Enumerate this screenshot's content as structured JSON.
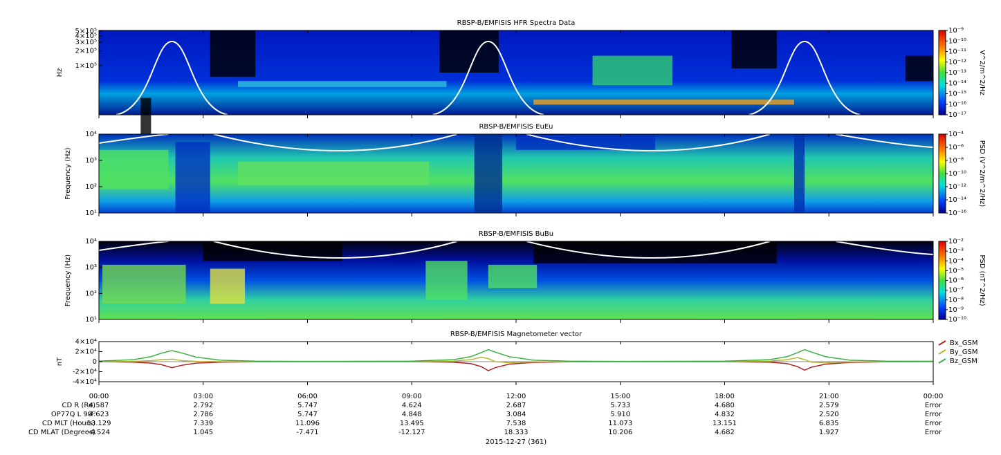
{
  "chart_data": [
    {
      "type": "spectrogram",
      "title": "RBSP-B/EMFISIS  HFR Spectra Data",
      "ylabel": "Hz",
      "yscale": "log",
      "ylim": [
        10000,
        520000
      ],
      "yticks": [
        {
          "value": 100000,
          "label": "1×10⁵"
        },
        {
          "value": 200000,
          "label": "2×10⁵"
        },
        {
          "value": 300000,
          "label": "3×10⁵"
        },
        {
          "value": 400000,
          "label": "4×10⁵"
        },
        {
          "value": 500000,
          "label": "5×10⁵"
        }
      ],
      "colorbar": {
        "label": "V^2/m^2/Hz",
        "scale": "log",
        "lim": [
          1e-17,
          1e-09
        ],
        "ticks": [
          {
            "value": 1e-09,
            "label": "10⁻⁹"
          },
          {
            "value": 1e-10,
            "label": "10⁻¹⁰"
          },
          {
            "value": 1e-11,
            "label": "10⁻¹¹"
          },
          {
            "value": 1e-12,
            "label": "10⁻¹²"
          },
          {
            "value": 1e-13,
            "label": "10⁻¹³"
          },
          {
            "value": 1e-14,
            "label": "10⁻¹⁴"
          },
          {
            "value": 1e-15,
            "label": "10⁻¹⁵"
          },
          {
            "value": 1e-16,
            "label": "10⁻¹⁶"
          },
          {
            "value": 1e-17,
            "label": "10⁻¹⁷"
          }
        ]
      }
    },
    {
      "type": "spectrogram",
      "title": "RBSP-B/EMFISIS  EuEu",
      "ylabel": "Frequency (Hz)",
      "yscale": "log",
      "ylim": [
        10,
        10000
      ],
      "yticks": [
        {
          "value": 10,
          "label": "10¹"
        },
        {
          "value": 100,
          "label": "10²"
        },
        {
          "value": 1000,
          "label": "10³"
        },
        {
          "value": 10000,
          "label": "10⁴"
        }
      ],
      "colorbar": {
        "label": "PSD (V^2/m^2/Hz)",
        "scale": "log",
        "lim": [
          1e-16,
          0.0001
        ],
        "ticks": [
          {
            "value": 0.0001,
            "label": "10⁻⁴"
          },
          {
            "value": 1e-06,
            "label": "10⁻⁶"
          },
          {
            "value": 1e-08,
            "label": "10⁻⁸"
          },
          {
            "value": 1e-10,
            "label": "10⁻¹⁰"
          },
          {
            "value": 1e-12,
            "label": "10⁻¹²"
          },
          {
            "value": 1e-14,
            "label": "10⁻¹⁴"
          },
          {
            "value": 1e-16,
            "label": "10⁻¹⁶"
          }
        ]
      }
    },
    {
      "type": "spectrogram",
      "title": "RBSP-B/EMFISIS  BuBu",
      "ylabel": "Frequency (Hz)",
      "yscale": "log",
      "ylim": [
        10,
        10000
      ],
      "yticks": [
        {
          "value": 10,
          "label": "10¹"
        },
        {
          "value": 100,
          "label": "10²"
        },
        {
          "value": 1000,
          "label": "10³"
        },
        {
          "value": 10000,
          "label": "10⁴"
        }
      ],
      "colorbar": {
        "label": "PSD (nT^2/Hz)",
        "scale": "log",
        "lim": [
          1e-10,
          0.01
        ],
        "ticks": [
          {
            "value": 0.01,
            "label": "10⁻²"
          },
          {
            "value": 0.001,
            "label": "10⁻³"
          },
          {
            "value": 0.0001,
            "label": "10⁻⁴"
          },
          {
            "value": 1e-05,
            "label": "10⁻⁵"
          },
          {
            "value": 1e-06,
            "label": "10⁻⁶"
          },
          {
            "value": 1e-07,
            "label": "10⁻⁷"
          },
          {
            "value": 1e-08,
            "label": "10⁻⁸"
          },
          {
            "value": 1e-09,
            "label": "10⁻⁹"
          },
          {
            "value": 1e-10,
            "label": "10⁻¹⁰"
          }
        ]
      }
    },
    {
      "type": "line",
      "title": "RBSP-B/EMFISIS  Magnetometer vector",
      "ylabel": "nT",
      "ylim": [
        -40000,
        40000
      ],
      "yticks": [
        {
          "value": 40000,
          "label": "4×10⁴"
        },
        {
          "value": 20000,
          "label": "2×10⁴"
        },
        0,
        {
          "value": -20000,
          "label": "-2×10⁴"
        },
        {
          "value": -40000,
          "label": "-4×10⁴"
        }
      ],
      "xlim": [
        0,
        24
      ],
      "xticks": [
        {
          "value": 0,
          "label": "00:00"
        },
        {
          "value": 3,
          "label": "03:00"
        },
        {
          "value": 6,
          "label": "06:00"
        },
        {
          "value": 9,
          "label": "09:00"
        },
        {
          "value": 12,
          "label": "12:00"
        },
        {
          "value": 15,
          "label": "15:00"
        },
        {
          "value": 18,
          "label": "18:00"
        },
        {
          "value": 21,
          "label": "21:00"
        },
        {
          "value": 24,
          "label": "00:00"
        }
      ],
      "x": [
        0,
        1,
        1.5,
        1.8,
        2.1,
        2.4,
        2.8,
        3.5,
        4.5,
        6,
        9,
        10.2,
        10.7,
        11.0,
        11.2,
        11.4,
        11.8,
        12.5,
        13.5,
        15,
        18,
        19.3,
        19.8,
        20.1,
        20.3,
        20.5,
        20.9,
        21.6,
        22.6,
        24
      ],
      "series": [
        {
          "name": "Bx_GSM",
          "color": "#b22222",
          "values": [
            0,
            -1000,
            -3000,
            -6000,
            -12000,
            -7000,
            -3000,
            -1000,
            -300,
            0,
            -200,
            -1000,
            -4000,
            -10000,
            -18000,
            -12000,
            -5000,
            -1500,
            -300,
            0,
            -200,
            -1000,
            -4000,
            -10000,
            -17000,
            -11000,
            -5000,
            -1500,
            -300,
            0
          ]
        },
        {
          "name": "By_GSM",
          "color": "#b5b535",
          "values": [
            0,
            500,
            2000,
            4000,
            5000,
            2000,
            500,
            0,
            0,
            0,
            0,
            1000,
            4000,
            9000,
            6000,
            0,
            -2000,
            -500,
            0,
            0,
            0,
            1000,
            4000,
            8000,
            4000,
            -1000,
            -2000,
            -500,
            0,
            0
          ]
        },
        {
          "name": "Bz_GSM",
          "color": "#3cb043",
          "values": [
            1000,
            4000,
            10000,
            17000,
            22000,
            17000,
            9000,
            3000,
            1000,
            500,
            1000,
            4000,
            10000,
            18000,
            24000,
            19000,
            10000,
            3000,
            1000,
            500,
            1000,
            4000,
            10000,
            18000,
            24000,
            19000,
            10000,
            3000,
            1000,
            800
          ]
        }
      ]
    }
  ],
  "ephemeris": {
    "rows": [
      {
        "label": "CD R (Re)",
        "values": [
          "4.587",
          "2.792",
          "5.747",
          "4.624",
          "2.687",
          "5.733",
          "4.680",
          "2.579",
          "Error"
        ]
      },
      {
        "label": "OP77Q L 90ᴼ",
        "values": [
          "4.623",
          "2.786",
          "5.747",
          "4.848",
          "3.084",
          "5.910",
          "4.832",
          "2.520",
          "Error"
        ]
      },
      {
        "label": "CD MLT (Hours)",
        "values": [
          "13.129",
          "7.339",
          "11.096",
          "13.495",
          "7.538",
          "11.073",
          "13.151",
          "6.835",
          "Error"
        ]
      },
      {
        "label": "CD MLAT (Degrees)",
        "values": [
          "-4.524",
          "1.045",
          "-7.471",
          "-12.127",
          "18.333",
          "10.206",
          "4.682",
          "1.927",
          "Error"
        ]
      }
    ],
    "date": "2015-12-27 (361)"
  }
}
